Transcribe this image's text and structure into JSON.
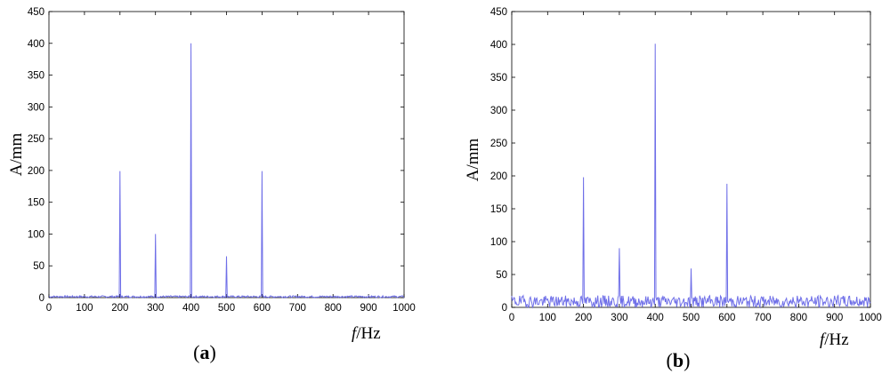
{
  "chart_data": [
    {
      "type": "line",
      "panel_label": "(a)",
      "panel_open": "(",
      "panel_letter": "a",
      "panel_close": ")",
      "ylabel": "A/mm",
      "xlabel_italic": "f",
      "xlabel_rest": "/Hz",
      "xlim": [
        0,
        1000
      ],
      "ylim": [
        0,
        450
      ],
      "xticks": [
        0,
        100,
        200,
        300,
        400,
        500,
        600,
        700,
        800,
        900,
        1000
      ],
      "yticks": [
        0,
        50,
        100,
        150,
        200,
        250,
        300,
        350,
        400,
        450
      ],
      "line_color": "#6f6fe8",
      "noise_amplitude": 3,
      "peaks": [
        {
          "x": 200,
          "y": 199
        },
        {
          "x": 300,
          "y": 100
        },
        {
          "x": 400,
          "y": 400
        },
        {
          "x": 500,
          "y": 65
        },
        {
          "x": 600,
          "y": 199
        }
      ]
    },
    {
      "type": "line",
      "panel_label": "(b)",
      "panel_open": "(",
      "panel_letter": "b",
      "panel_close": ")",
      "ylabel": "A/mm",
      "xlabel_italic": "f",
      "xlabel_rest": "/Hz",
      "xlim": [
        0,
        1000
      ],
      "ylim": [
        0,
        450
      ],
      "xticks": [
        0,
        100,
        200,
        300,
        400,
        500,
        600,
        700,
        800,
        900,
        1000
      ],
      "yticks": [
        0,
        50,
        100,
        150,
        200,
        250,
        300,
        350,
        400,
        450
      ],
      "line_color": "#6f6fe8",
      "noise_amplitude": 18,
      "peaks": [
        {
          "x": 200,
          "y": 198
        },
        {
          "x": 300,
          "y": 90
        },
        {
          "x": 400,
          "y": 401
        },
        {
          "x": 500,
          "y": 59
        },
        {
          "x": 600,
          "y": 188
        }
      ]
    }
  ]
}
